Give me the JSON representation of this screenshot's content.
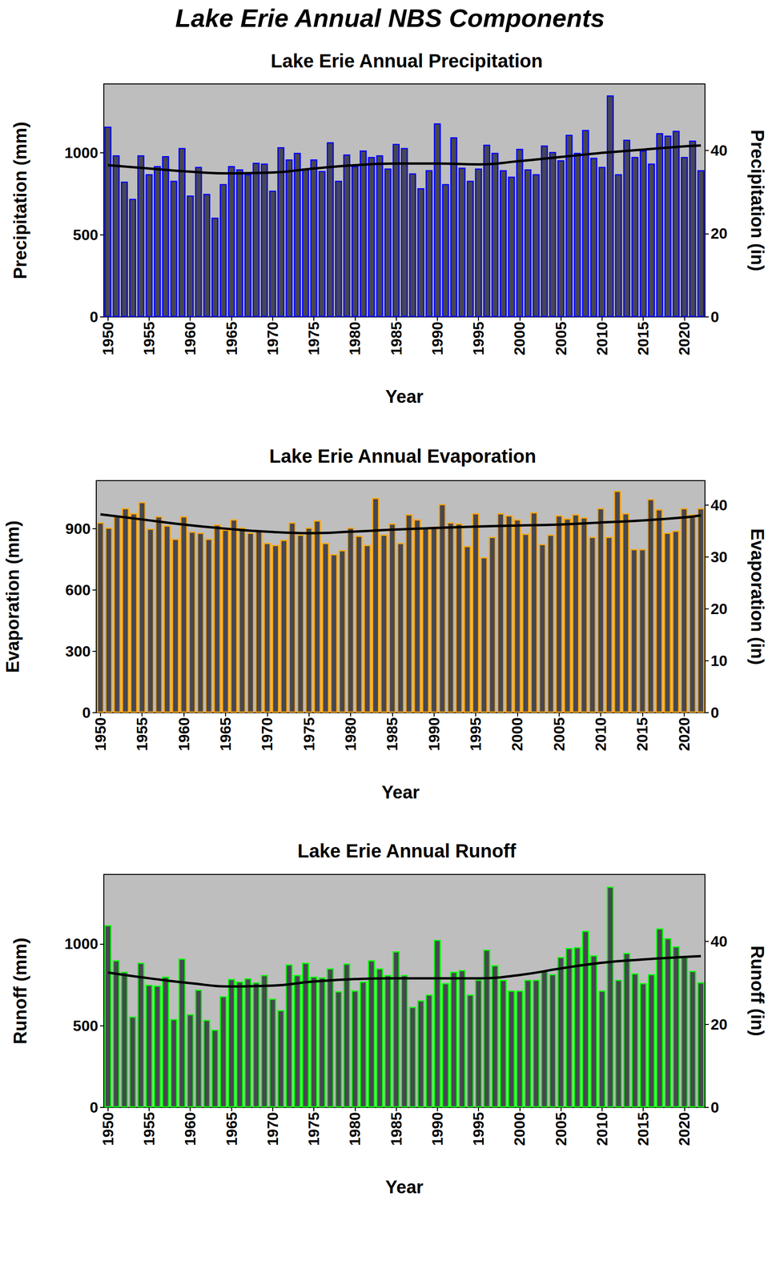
{
  "title": "Lake Erie Annual NBS Components",
  "chart_data": [
    {
      "type": "bar",
      "title": "Lake Erie Annual Precipitation",
      "xlabel": "Year",
      "ylabel": "Precipitation (mm)",
      "y2label": "Precipitation (in)",
      "xlim": [
        1949.5,
        2022.5
      ],
      "xticks": [
        1950,
        1955,
        1960,
        1965,
        1970,
        1975,
        1980,
        1985,
        1990,
        1995,
        2000,
        2005,
        2010,
        2015,
        2020
      ],
      "ylim": [
        0,
        1420
      ],
      "yticks": [
        0,
        500,
        1000
      ],
      "y2lim": [
        0,
        55.9
      ],
      "y2ticks": [
        0,
        20,
        40
      ],
      "grid": false,
      "x": [
        1950,
        1951,
        1952,
        1953,
        1954,
        1955,
        1956,
        1957,
        1958,
        1959,
        1960,
        1961,
        1962,
        1963,
        1964,
        1965,
        1966,
        1967,
        1968,
        1969,
        1970,
        1971,
        1972,
        1973,
        1974,
        1975,
        1976,
        1977,
        1978,
        1979,
        1980,
        1981,
        1982,
        1983,
        1984,
        1985,
        1986,
        1987,
        1988,
        1989,
        1990,
        1991,
        1992,
        1993,
        1994,
        1995,
        1996,
        1997,
        1998,
        1999,
        2000,
        2001,
        2002,
        2003,
        2004,
        2005,
        2006,
        2007,
        2008,
        2009,
        2010,
        2011,
        2012,
        2013,
        2014,
        2015,
        2016,
        2017,
        2018,
        2019,
        2020,
        2021,
        2022
      ],
      "series": [
        {
          "type": "bar",
          "color": "#0000ff",
          "values": [
            1160,
            985,
            825,
            720,
            985,
            870,
            920,
            980,
            830,
            1030,
            740,
            915,
            750,
            605,
            810,
            920,
            900,
            870,
            940,
            935,
            770,
            1035,
            960,
            1000,
            905,
            960,
            890,
            1065,
            830,
            990,
            920,
            1015,
            975,
            985,
            905,
            1055,
            1030,
            875,
            785,
            895,
            1180,
            810,
            1095,
            910,
            830,
            905,
            1050,
            1000,
            895,
            855,
            1025,
            900,
            870,
            1045,
            1005,
            955,
            1110,
            1000,
            1140,
            970,
            915,
            1350,
            870,
            1080,
            975,
            1015,
            935,
            1120,
            1105,
            1135,
            975,
            1075,
            895
          ]
        },
        {
          "type": "line",
          "color": "#000000",
          "x": [
            1950,
            1955,
            1960,
            1965,
            1970,
            1975,
            1980,
            1985,
            1990,
            1995,
            2000,
            2005,
            2010,
            2015,
            2020,
            2022
          ],
          "values": [
            925,
            905,
            885,
            875,
            880,
            905,
            925,
            935,
            935,
            930,
            950,
            975,
            1000,
            1020,
            1040,
            1045
          ]
        }
      ]
    },
    {
      "type": "bar",
      "title": "Lake Erie Annual Evaporation",
      "xlabel": "Year",
      "ylabel": "Evaporation (mm)",
      "y2label": "Evaporation (in)",
      "xlim": [
        1949.5,
        2022.5
      ],
      "xticks": [
        1950,
        1955,
        1960,
        1965,
        1970,
        1975,
        1980,
        1985,
        1990,
        1995,
        2000,
        2005,
        2010,
        2015,
        2020
      ],
      "ylim": [
        0,
        1135
      ],
      "yticks": [
        0,
        300,
        600,
        900
      ],
      "y2lim": [
        0,
        44.69
      ],
      "y2ticks": [
        0,
        10,
        20,
        30,
        40
      ],
      "grid": false,
      "x": [
        1950,
        1951,
        1952,
        1953,
        1954,
        1955,
        1956,
        1957,
        1958,
        1959,
        1960,
        1961,
        1962,
        1963,
        1964,
        1965,
        1966,
        1967,
        1968,
        1969,
        1970,
        1971,
        1972,
        1973,
        1974,
        1975,
        1976,
        1977,
        1978,
        1979,
        1980,
        1981,
        1982,
        1983,
        1984,
        1985,
        1986,
        1987,
        1988,
        1989,
        1990,
        1991,
        1992,
        1993,
        1994,
        1995,
        1996,
        1997,
        1998,
        1999,
        2000,
        2001,
        2002,
        2003,
        2004,
        2005,
        2006,
        2007,
        2008,
        2009,
        2010,
        2011,
        2012,
        2013,
        2014,
        2015,
        2016,
        2017,
        2018,
        2019,
        2020,
        2021,
        2022
      ],
      "series": [
        {
          "type": "bar",
          "color": "#ffa500",
          "values": [
            930,
            905,
            960,
            1000,
            975,
            1030,
            900,
            960,
            915,
            850,
            960,
            885,
            880,
            850,
            920,
            895,
            945,
            905,
            880,
            890,
            830,
            820,
            845,
            930,
            870,
            905,
            940,
            830,
            775,
            795,
            905,
            865,
            820,
            1050,
            870,
            925,
            830,
            970,
            945,
            905,
            910,
            1020,
            930,
            925,
            815,
            975,
            760,
            860,
            975,
            965,
            945,
            875,
            980,
            825,
            870,
            965,
            950,
            970,
            955,
            860,
            1000,
            860,
            1085,
            975,
            800,
            800,
            1045,
            995,
            880,
            890,
            1000,
            970,
            1000
          ]
        },
        {
          "type": "line",
          "color": "#000000",
          "x": [
            1950,
            1955,
            1960,
            1965,
            1970,
            1975,
            1980,
            1985,
            1990,
            1995,
            2000,
            2005,
            2010,
            2015,
            2020,
            2022
          ],
          "values": [
            970,
            945,
            920,
            900,
            885,
            878,
            885,
            895,
            903,
            910,
            915,
            920,
            930,
            940,
            955,
            965
          ]
        }
      ]
    },
    {
      "type": "bar",
      "title": "Lake Erie Annual Runoff",
      "xlabel": "Year",
      "ylabel": "Runoff (mm)",
      "y2label": "Runoff (in)",
      "xlim": [
        1949.5,
        2022.5
      ],
      "xticks": [
        1950,
        1955,
        1960,
        1965,
        1970,
        1975,
        1980,
        1985,
        1990,
        1995,
        2000,
        2005,
        2010,
        2015,
        2020
      ],
      "ylim": [
        0,
        1425
      ],
      "yticks": [
        0,
        500,
        1000
      ],
      "y2lim": [
        0,
        56.1
      ],
      "y2ticks": [
        0,
        20,
        40
      ],
      "grid": false,
      "x": [
        1950,
        1951,
        1952,
        1953,
        1954,
        1955,
        1956,
        1957,
        1958,
        1959,
        1960,
        1961,
        1962,
        1963,
        1964,
        1965,
        1966,
        1967,
        1968,
        1969,
        1970,
        1971,
        1972,
        1973,
        1974,
        1975,
        1976,
        1977,
        1978,
        1979,
        1980,
        1981,
        1982,
        1983,
        1984,
        1985,
        1986,
        1987,
        1988,
        1989,
        1990,
        1991,
        1992,
        1993,
        1994,
        1995,
        1996,
        1997,
        1998,
        1999,
        2000,
        2001,
        2002,
        2003,
        2004,
        2005,
        2006,
        2007,
        2008,
        2009,
        2010,
        2011,
        2012,
        2013,
        2014,
        2015,
        2016,
        2017,
        2018,
        2019,
        2020,
        2021,
        2022
      ],
      "series": [
        {
          "type": "bar",
          "color": "#00ff00",
          "values": [
            1115,
            900,
            830,
            555,
            885,
            750,
            745,
            800,
            540,
            910,
            570,
            720,
            535,
            475,
            680,
            785,
            770,
            790,
            765,
            810,
            665,
            595,
            875,
            810,
            885,
            800,
            795,
            850,
            710,
            880,
            715,
            770,
            900,
            850,
            810,
            955,
            810,
            615,
            655,
            690,
            1025,
            760,
            830,
            840,
            690,
            780,
            965,
            870,
            780,
            715,
            715,
            780,
            780,
            835,
            815,
            920,
            975,
            980,
            1080,
            930,
            715,
            1350,
            780,
            945,
            820,
            760,
            815,
            1095,
            1035,
            985,
            920,
            835,
            765
          ]
        },
        {
          "type": "line",
          "color": "#000000",
          "x": [
            1950,
            1955,
            1960,
            1965,
            1970,
            1975,
            1980,
            1985,
            1990,
            1995,
            2000,
            2005,
            2010,
            2015,
            2020,
            2022
          ],
          "values": [
            825,
            790,
            760,
            740,
            745,
            770,
            785,
            790,
            790,
            790,
            810,
            850,
            885,
            905,
            920,
            925
          ]
        }
      ]
    }
  ]
}
